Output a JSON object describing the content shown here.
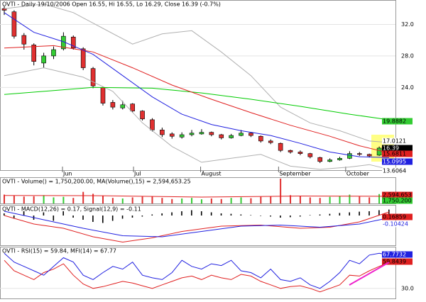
{
  "chart_data": [
    {
      "type": "candlestick",
      "title": "OVTI - Daily 19/10/2006 Open 16.55, Hi 16.55, Lo 16.29, Close 16.39 (-0.7%)",
      "ohlc": [
        [
          34.0,
          34.3,
          33.2,
          33.8
        ],
        [
          33.6,
          33.8,
          30.2,
          30.5
        ],
        [
          30.6,
          30.9,
          28.8,
          29.5
        ],
        [
          29.4,
          29.6,
          26.8,
          27.3
        ],
        [
          27.1,
          28.4,
          26.5,
          28.0
        ],
        [
          28.0,
          29.2,
          27.6,
          28.8
        ],
        [
          28.9,
          31.0,
          28.7,
          30.5
        ],
        [
          30.4,
          30.6,
          28.8,
          29.0
        ],
        [
          28.9,
          29.1,
          26.2,
          26.5
        ],
        [
          26.4,
          26.6,
          23.9,
          24.2
        ],
        [
          24.0,
          24.1,
          21.7,
          22.0
        ],
        [
          22.1,
          22.4,
          21.2,
          21.5
        ],
        [
          21.4,
          22.3,
          21.2,
          21.8
        ],
        [
          21.9,
          22.0,
          20.8,
          21.0
        ],
        [
          21.0,
          21.1,
          19.8,
          20.0
        ],
        [
          19.9,
          20.1,
          18.4,
          18.6
        ],
        [
          18.6,
          18.9,
          17.7,
          18.0
        ],
        [
          18.1,
          18.3,
          17.5,
          17.8
        ],
        [
          17.7,
          18.3,
          17.5,
          18.0
        ],
        [
          18.0,
          18.6,
          17.8,
          18.2
        ],
        [
          18.1,
          18.7,
          18.0,
          18.3
        ],
        [
          18.3,
          18.4,
          17.8,
          18.0
        ],
        [
          18.0,
          18.1,
          17.4,
          17.6
        ],
        [
          17.6,
          18.1,
          17.5,
          17.9
        ],
        [
          17.9,
          18.6,
          17.8,
          18.2
        ],
        [
          18.2,
          18.3,
          17.7,
          17.9
        ],
        [
          17.8,
          17.9,
          17.0,
          17.2
        ],
        [
          17.2,
          17.4,
          16.8,
          17.0
        ],
        [
          16.9,
          17.0,
          15.8,
          16.0
        ],
        [
          16.0,
          16.1,
          15.6,
          15.8
        ],
        [
          15.8,
          16.0,
          15.4,
          15.6
        ],
        [
          15.6,
          15.7,
          15.0,
          15.2
        ],
        [
          15.1,
          15.2,
          14.4,
          14.6
        ],
        [
          14.6,
          15.0,
          14.5,
          14.8
        ],
        [
          14.8,
          15.2,
          14.7,
          15.0
        ],
        [
          15.0,
          15.9,
          14.9,
          15.6
        ],
        [
          15.6,
          15.8,
          15.3,
          15.5
        ],
        [
          15.5,
          15.6,
          15.1,
          15.3
        ],
        [
          15.4,
          16.5,
          15.3,
          16.3
        ],
        [
          16.55,
          16.55,
          16.29,
          16.39
        ]
      ],
      "up_color": "#33cc33",
      "down_color": "#e03030",
      "xticks": [
        {
          "value": 5.9,
          "label": "Jun"
        },
        {
          "value": 13.1,
          "label": "Jul"
        },
        {
          "value": 19.9,
          "label": "August"
        },
        {
          "value": 27.8,
          "label": "September"
        },
        {
          "value": 34.6,
          "label": "October"
        }
      ],
      "ylim": [
        13.5,
        35.1
      ],
      "yticks": [
        {
          "value": 32,
          "label": "32.0"
        },
        {
          "value": 28,
          "label": "28.0"
        },
        {
          "value": 24,
          "label": "24.0"
        }
      ],
      "overlays": [
        {
          "color": "#b0b0b0",
          "x": [
            0,
            4,
            7,
            10,
            13,
            16,
            19,
            22,
            25,
            28,
            31,
            34,
            37,
            39
          ],
          "values": [
            34,
            34.6,
            33.5,
            31.5,
            29.5,
            30.8,
            31.2,
            28.5,
            25.5,
            21.5,
            19.5,
            18.5,
            17.2,
            17.01
          ]
        },
        {
          "color": "#b0b0b0",
          "x": [
            0,
            4,
            8,
            11,
            14,
            17,
            20,
            23,
            26,
            29,
            32,
            35,
            37,
            39
          ],
          "values": [
            25.5,
            26.5,
            25.3,
            23.5,
            19.5,
            16.5,
            14.5,
            15.0,
            15.5,
            14.0,
            13.6,
            13.9,
            14.2,
            13.61
          ]
        },
        {
          "color": "#00cc00",
          "x": [
            0,
            9,
            15,
            20,
            25,
            30,
            35,
            39
          ],
          "values": [
            23.1,
            24.0,
            23.9,
            23.3,
            22.5,
            21.6,
            20.6,
            19.89
          ]
        },
        {
          "color": "#e02020",
          "x": [
            0,
            5,
            9,
            13,
            17,
            21,
            25,
            29,
            33,
            36,
            39
          ],
          "values": [
            29,
            29.3,
            28.5,
            26.5,
            24.3,
            22.5,
            20.8,
            19.2,
            17.8,
            16.6,
            15.68
          ]
        },
        {
          "color": "#2020e0",
          "x": [
            0,
            3,
            6,
            9,
            12,
            15,
            18,
            21,
            24,
            27,
            30,
            33,
            36,
            39
          ],
          "values": [
            33.5,
            31,
            29.8,
            28.2,
            25.5,
            22.8,
            20.6,
            19.3,
            18.5,
            17.9,
            16.9,
            15.8,
            15.2,
            15.1
          ]
        }
      ],
      "last_labels": [
        {
          "label": "19.8882",
          "bg": "#33cc33",
          "fg": "#000000"
        },
        {
          "label": "17.0121",
          "bg": "#ffffff",
          "fg": "#000000"
        },
        {
          "label": "16.39",
          "bg": "#000000",
          "fg": "#ffffff"
        },
        {
          "label": "15.6811",
          "bg": "#e02020",
          "fg": "#000000"
        },
        {
          "label": "15.0995",
          "bg": "#2020e0",
          "fg": "#ffffff"
        },
        {
          "label": "13.6064",
          "bg": "#ffffff",
          "fg": "#000000"
        }
      ]
    },
    {
      "type": "volume",
      "title": "OVTI - Volume() = 1,750,200.00, MA(Volume(),15) = 2,594,653.25",
      "values": [
        3200000,
        2800000,
        2500000,
        2600000,
        3000000,
        2200000,
        2400000,
        2000000,
        4200000,
        3500000,
        2800000,
        2000000,
        1800000,
        2200000,
        2500000,
        2600000,
        2000000,
        1600000,
        1800000,
        2000000,
        1500000,
        1800000,
        1600000,
        2000000,
        2200000,
        1900000,
        2400000,
        2600000,
        9000000,
        3000000,
        2800000,
        2200000,
        2000000,
        2400000,
        2600000,
        3200000,
        2500000,
        2200000,
        3400000,
        1750200
      ],
      "ylim": [
        0,
        9500000
      ],
      "overlays": [
        {
          "color": "#e02020",
          "x": [
            0,
            10,
            20,
            30,
            39
          ],
          "values": [
            2900000,
            2800000,
            2300000,
            2700000,
            2594653
          ]
        }
      ],
      "last_labels": [
        {
          "label": "2,594,653",
          "bg": "#e02020",
          "fg": "#000000"
        },
        {
          "label": "1,750,200",
          "bg": "#33cc33",
          "fg": "#000000"
        }
      ]
    },
    {
      "type": "macd",
      "title": "OVTI - MACD(12,26) = 0.17, Signal(12,9) = -0.11",
      "histogram": [
        0.1,
        -0.15,
        0.2,
        -0.2,
        0.15,
        -0.25,
        0.2,
        -0.1,
        -0.2,
        -0.3,
        -0.35,
        -0.25,
        -0.15,
        -0.1,
        -0.05,
        0.05,
        0.1,
        0.15,
        0.2,
        0.25,
        0.2,
        0.15,
        0.1,
        0.08,
        0.05,
        0.02,
        -0.02,
        -0.05,
        -0.1,
        -0.08,
        -0.05,
        0.02,
        0.05,
        0.08,
        0.12,
        0.15,
        0.18,
        0.2,
        0.25,
        0.28
      ],
      "ylim": [
        -1.4,
        0.5
      ],
      "overlays": [
        {
          "color": "#e02020",
          "x": [
            0,
            3,
            6,
            9,
            12,
            15,
            18,
            22,
            26,
            30,
            33,
            36,
            39
          ],
          "values": [
            0.0,
            -0.4,
            -0.6,
            -1.0,
            -1.25,
            -1.05,
            -0.75,
            -0.5,
            -0.45,
            -0.6,
            -0.55,
            -0.3,
            0.17
          ]
        },
        {
          "color": "#2020e0",
          "x": [
            0,
            4,
            8,
            12,
            16,
            20,
            24,
            28,
            32,
            36,
            39
          ],
          "values": [
            0.2,
            -0.2,
            -0.6,
            -0.95,
            -1.0,
            -0.75,
            -0.5,
            -0.45,
            -0.55,
            -0.4,
            -0.11
          ]
        }
      ],
      "last_labels": [
        {
          "label": "0.16859",
          "bg": "#e02020",
          "fg": "#000000"
        },
        {
          "label": "-0.10424",
          "bg": "#ffffff",
          "fg": "#2020e0"
        }
      ]
    },
    {
      "type": "oscillator",
      "title": "OVTI - RSI(15) = 59.84, MFI(14) = 67.77",
      "ylim": [
        18.5,
        77.5
      ],
      "yticks": [
        {
          "value": 30,
          "label": "30.0"
        }
      ],
      "overlays": [
        {
          "color": "#e02020",
          "x": [
            0,
            1,
            2,
            3,
            4,
            5,
            6,
            7,
            8,
            9,
            10,
            11,
            12,
            13,
            14,
            15,
            16,
            17,
            18,
            19,
            20,
            21,
            22,
            23,
            24,
            25,
            26,
            27,
            28,
            29,
            30,
            31,
            32,
            33,
            34,
            35,
            36,
            37,
            38,
            39
          ],
          "values": [
            62,
            50,
            45,
            40,
            48,
            52,
            58,
            45,
            35,
            30,
            32,
            35,
            38,
            36,
            33,
            30,
            34,
            38,
            42,
            44,
            40,
            45,
            42,
            40,
            46,
            44,
            38,
            34,
            30,
            32,
            33,
            30,
            26,
            30,
            34,
            45,
            44,
            50,
            55,
            59.84
          ]
        },
        {
          "color": "#2020e0",
          "x": [
            0,
            1,
            2,
            3,
            4,
            5,
            6,
            7,
            8,
            9,
            10,
            11,
            12,
            13,
            14,
            15,
            16,
            17,
            18,
            19,
            20,
            21,
            22,
            23,
            24,
            25,
            26,
            27,
            28,
            29,
            30,
            31,
            32,
            33,
            34,
            35,
            36,
            37,
            38,
            39
          ],
          "values": [
            70,
            60,
            55,
            50,
            45,
            55,
            65,
            60,
            45,
            40,
            48,
            55,
            52,
            60,
            45,
            42,
            40,
            48,
            62,
            55,
            52,
            58,
            56,
            62,
            50,
            48,
            42,
            52,
            40,
            38,
            42,
            34,
            30,
            38,
            48,
            62,
            58,
            68,
            70,
            67.77
          ]
        }
      ],
      "last_labels": [
        {
          "label": "67.7732",
          "bg": "#2020e0",
          "fg": "#ffffff"
        },
        {
          "label": "59.8439",
          "bg": "#e02020",
          "fg": "#000000"
        }
      ]
    }
  ]
}
